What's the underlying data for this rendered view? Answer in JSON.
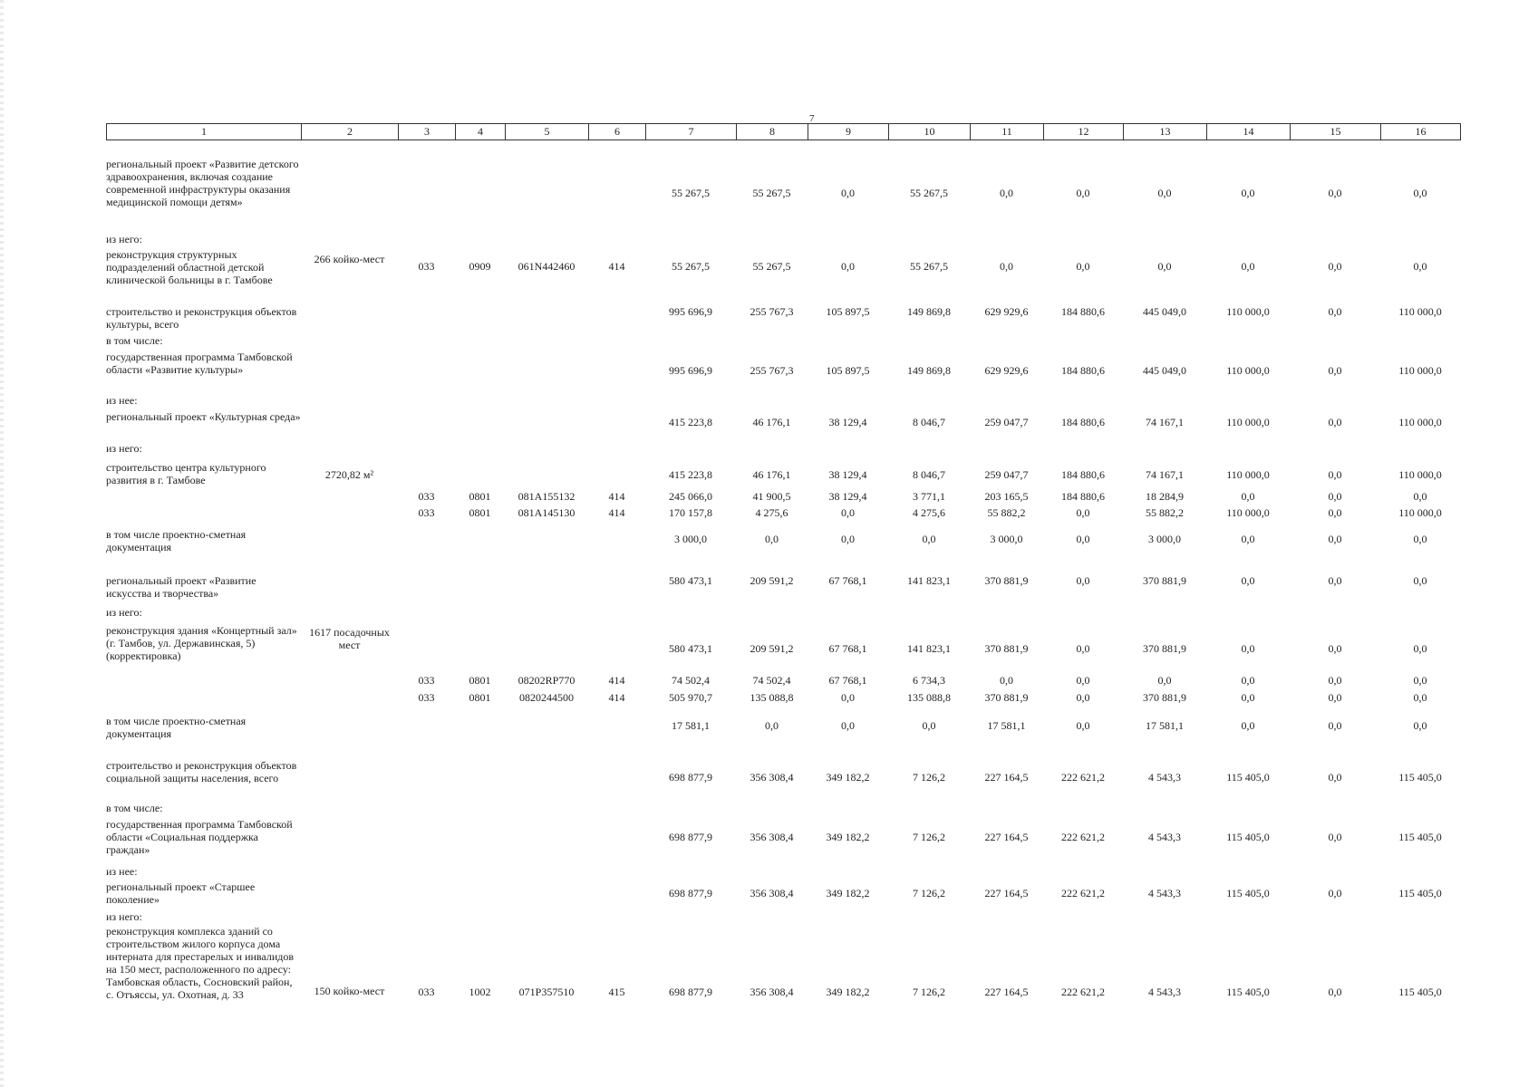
{
  "page_number": "7",
  "header_columns": [
    "1",
    "2",
    "3",
    "4",
    "5",
    "6",
    "7",
    "8",
    "9",
    "10",
    "11",
    "12",
    "13",
    "14",
    "15",
    "16"
  ],
  "rows": [
    {
      "name": "региональный проект «Развитие детского здравоохранения, включая создание современной инфраструктуры оказания медицинской помощи детям»",
      "capacity": "",
      "k3": "",
      "k4": "",
      "k5": "",
      "k6": "",
      "v": [
        "55 267,5",
        "55 267,5",
        "0,0",
        "55 267,5",
        "0,0",
        "0,0",
        "0,0",
        "0,0",
        "0,0",
        "0,0"
      ]
    },
    {
      "name": "из него:",
      "capacity": "",
      "k3": "",
      "k4": "",
      "k5": "",
      "k6": "",
      "v": [
        "",
        "",
        "",
        "",
        "",
        "",
        "",
        "",
        "",
        ""
      ]
    },
    {
      "name": "реконструкция структурных подразделений областной детской клинической больницы в г. Тамбове",
      "capacity": "266 койко-мест",
      "k3": "033",
      "k4": "0909",
      "k5": "061N442460",
      "k6": "414",
      "v": [
        "55 267,5",
        "55 267,5",
        "0,0",
        "55 267,5",
        "0,0",
        "0,0",
        "0,0",
        "0,0",
        "0,0",
        "0,0"
      ]
    },
    {
      "name": "строительство и реконструкция объектов культуры, всего",
      "capacity": "",
      "k3": "",
      "k4": "",
      "k5": "",
      "k6": "",
      "v": [
        "995 696,9",
        "255 767,3",
        "105 897,5",
        "149 869,8",
        "629 929,6",
        "184 880,6",
        "445 049,0",
        "110 000,0",
        "0,0",
        "110 000,0"
      ]
    },
    {
      "name": "в том числе:",
      "capacity": "",
      "k3": "",
      "k4": "",
      "k5": "",
      "k6": "",
      "v": [
        "",
        "",
        "",
        "",
        "",
        "",
        "",
        "",
        "",
        ""
      ]
    },
    {
      "name": "государственная программа Тамбовской области «Развитие культуры»",
      "capacity": "",
      "k3": "",
      "k4": "",
      "k5": "",
      "k6": "",
      "v": [
        "995 696,9",
        "255 767,3",
        "105 897,5",
        "149 869,8",
        "629 929,6",
        "184 880,6",
        "445 049,0",
        "110 000,0",
        "0,0",
        "110 000,0"
      ]
    },
    {
      "name": "из нее:",
      "capacity": "",
      "k3": "",
      "k4": "",
      "k5": "",
      "k6": "",
      "v": [
        "",
        "",
        "",
        "",
        "",
        "",
        "",
        "",
        "",
        ""
      ]
    },
    {
      "name": "региональный проект «Культурная среда»",
      "capacity": "",
      "k3": "",
      "k4": "",
      "k5": "",
      "k6": "",
      "v": [
        "415 223,8",
        "46 176,1",
        "38 129,4",
        "8 046,7",
        "259 047,7",
        "184 880,6",
        "74 167,1",
        "110 000,0",
        "0,0",
        "110 000,0"
      ]
    },
    {
      "name": "из него:",
      "capacity": "",
      "k3": "",
      "k4": "",
      "k5": "",
      "k6": "",
      "v": [
        "",
        "",
        "",
        "",
        "",
        "",
        "",
        "",
        "",
        ""
      ]
    },
    {
      "name": "строительство центра культурного развития в г. Тамбове",
      "capacity": "2720,82 м²",
      "k3": "",
      "k4": "",
      "k5": "",
      "k6": "",
      "v": [
        "415 223,8",
        "46 176,1",
        "38 129,4",
        "8 046,7",
        "259 047,7",
        "184 880,6",
        "74 167,1",
        "110 000,0",
        "0,0",
        "110 000,0"
      ]
    },
    {
      "name": "",
      "capacity": "",
      "k3": "033",
      "k4": "0801",
      "k5": "081A155132",
      "k6": "414",
      "v": [
        "245 066,0",
        "41 900,5",
        "38 129,4",
        "3 771,1",
        "203 165,5",
        "184 880,6",
        "18 284,9",
        "0,0",
        "0,0",
        "0,0"
      ]
    },
    {
      "name": "",
      "capacity": "",
      "k3": "033",
      "k4": "0801",
      "k5": "081A145130",
      "k6": "414",
      "v": [
        "170 157,8",
        "4 275,6",
        "0,0",
        "4 275,6",
        "55 882,2",
        "0,0",
        "55 882,2",
        "110 000,0",
        "0,0",
        "110 000,0"
      ]
    },
    {
      "name": "в том числе проектно-сметная документация",
      "capacity": "",
      "k3": "",
      "k4": "",
      "k5": "",
      "k6": "",
      "v": [
        "3 000,0",
        "0,0",
        "0,0",
        "0,0",
        "3 000,0",
        "0,0",
        "3 000,0",
        "0,0",
        "0,0",
        "0,0"
      ]
    },
    {
      "name": "региональный проект «Развитие искусства и творчества»",
      "capacity": "",
      "k3": "",
      "k4": "",
      "k5": "",
      "k6": "",
      "v": [
        "580 473,1",
        "209 591,2",
        "67 768,1",
        "141 823,1",
        "370 881,9",
        "0,0",
        "370 881,9",
        "0,0",
        "0,0",
        "0,0"
      ]
    },
    {
      "name": "из него:",
      "capacity": "",
      "k3": "",
      "k4": "",
      "k5": "",
      "k6": "",
      "v": [
        "",
        "",
        "",
        "",
        "",
        "",
        "",
        "",
        "",
        ""
      ]
    },
    {
      "name": "реконструкция здания «Концертный зал» (г. Тамбов, ул. Державинская, 5) (корректировка)",
      "capacity": "1617 посадочных мест",
      "k3": "",
      "k4": "",
      "k5": "",
      "k6": "",
      "v": [
        "580 473,1",
        "209 591,2",
        "67 768,1",
        "141 823,1",
        "370 881,9",
        "0,0",
        "370 881,9",
        "0,0",
        "0,0",
        "0,0"
      ]
    },
    {
      "name": "",
      "capacity": "",
      "k3": "033",
      "k4": "0801",
      "k5": "08202RP770",
      "k6": "414",
      "v": [
        "74 502,4",
        "74 502,4",
        "67 768,1",
        "6 734,3",
        "0,0",
        "0,0",
        "0,0",
        "0,0",
        "0,0",
        "0,0"
      ]
    },
    {
      "name": "",
      "capacity": "",
      "k3": "033",
      "k4": "0801",
      "k5": "0820244500",
      "k6": "414",
      "v": [
        "505 970,7",
        "135 088,8",
        "0,0",
        "135 088,8",
        "370 881,9",
        "0,0",
        "370 881,9",
        "0,0",
        "0,0",
        "0,0"
      ]
    },
    {
      "name": "в том числе проектно-сметная документация",
      "capacity": "",
      "k3": "",
      "k4": "",
      "k5": "",
      "k6": "",
      "v": [
        "17 581,1",
        "0,0",
        "0,0",
        "0,0",
        "17 581,1",
        "0,0",
        "17 581,1",
        "0,0",
        "0,0",
        "0,0"
      ]
    },
    {
      "name": "строительство и реконструкция объектов социальной защиты населения, всего",
      "capacity": "",
      "k3": "",
      "k4": "",
      "k5": "",
      "k6": "",
      "v": [
        "698 877,9",
        "356 308,4",
        "349 182,2",
        "7 126,2",
        "227 164,5",
        "222 621,2",
        "4 543,3",
        "115 405,0",
        "0,0",
        "115 405,0"
      ]
    },
    {
      "name": "в том числе:",
      "capacity": "",
      "k3": "",
      "k4": "",
      "k5": "",
      "k6": "",
      "v": [
        "",
        "",
        "",
        "",
        "",
        "",
        "",
        "",
        "",
        ""
      ]
    },
    {
      "name": "государственная программа Тамбовской области «Социальная поддержка граждан»",
      "capacity": "",
      "k3": "",
      "k4": "",
      "k5": "",
      "k6": "",
      "v": [
        "698 877,9",
        "356 308,4",
        "349 182,2",
        "7 126,2",
        "227 164,5",
        "222 621,2",
        "4 543,3",
        "115 405,0",
        "0,0",
        "115 405,0"
      ]
    },
    {
      "name": "из нее:",
      "capacity": "",
      "k3": "",
      "k4": "",
      "k5": "",
      "k6": "",
      "v": [
        "",
        "",
        "",
        "",
        "",
        "",
        "",
        "",
        "",
        ""
      ]
    },
    {
      "name": "региональный проект «Старшее поколение»",
      "capacity": "",
      "k3": "",
      "k4": "",
      "k5": "",
      "k6": "",
      "v": [
        "698 877,9",
        "356 308,4",
        "349 182,2",
        "7 126,2",
        "227 164,5",
        "222 621,2",
        "4 543,3",
        "115 405,0",
        "0,0",
        "115 405,0"
      ]
    },
    {
      "name": "из него:",
      "capacity": "",
      "k3": "",
      "k4": "",
      "k5": "",
      "k6": "",
      "v": [
        "",
        "",
        "",
        "",
        "",
        "",
        "",
        "",
        "",
        ""
      ]
    },
    {
      "name": "реконструкция комплекса зданий со строительством жилого корпуса дома интерната для престарелых и инвалидов на 150 мест, расположенного по адресу: Тамбовская область, Сосновский район, с. Отъяссы, ул. Охотная, д. 33",
      "capacity": "150 койко-мест",
      "k3": "033",
      "k4": "1002",
      "k5": "071P357510",
      "k6": "415",
      "v": [
        "698 877,9",
        "356 308,4",
        "349 182,2",
        "7 126,2",
        "227 164,5",
        "222 621,2",
        "4 543,3",
        "115 405,0",
        "0,0",
        "115 405,0"
      ]
    }
  ]
}
